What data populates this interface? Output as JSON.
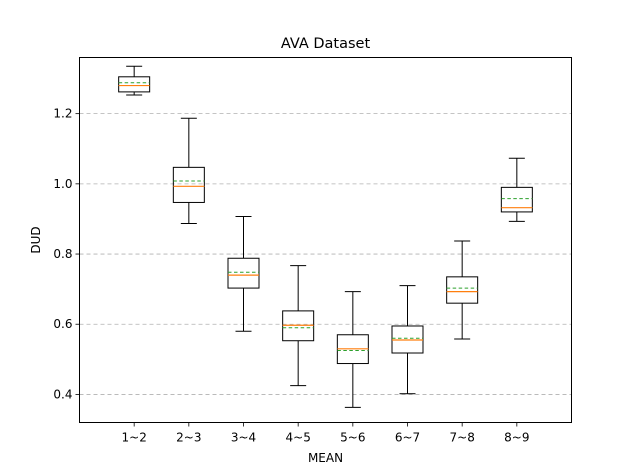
{
  "chart_data": {
    "type": "box",
    "title": "AVA Dataset",
    "xlabel": "MEAN",
    "ylabel": "DUD",
    "categories": [
      "1~2",
      "2~3",
      "3~4",
      "4~5",
      "5~6",
      "6~7",
      "7~8",
      "8~9"
    ],
    "ylim": [
      0.32,
      1.36
    ],
    "yticks": [
      0.4,
      0.6,
      0.8,
      1.0,
      1.2
    ],
    "ytick_labels": [
      "0.4",
      "0.6",
      "0.8",
      "1.0",
      "1.2"
    ],
    "grid": "horizontal dashed",
    "boxes": [
      {
        "category": "1~2",
        "whisker_low": 1.253,
        "q1": 1.262,
        "median": 1.28,
        "mean": 1.288,
        "q3": 1.305,
        "whisker_high": 1.335
      },
      {
        "category": "2~3",
        "whisker_low": 0.887,
        "q1": 0.947,
        "median": 0.993,
        "mean": 1.008,
        "q3": 1.047,
        "whisker_high": 1.187
      },
      {
        "category": "3~4",
        "whisker_low": 0.58,
        "q1": 0.703,
        "median": 0.74,
        "mean": 0.748,
        "q3": 0.788,
        "whisker_high": 0.907
      },
      {
        "category": "4~5",
        "whisker_low": 0.425,
        "q1": 0.553,
        "median": 0.597,
        "mean": 0.59,
        "q3": 0.638,
        "whisker_high": 0.767
      },
      {
        "category": "5~6",
        "whisker_low": 0.363,
        "q1": 0.488,
        "median": 0.53,
        "mean": 0.525,
        "q3": 0.57,
        "whisker_high": 0.693
      },
      {
        "category": "6~7",
        "whisker_low": 0.402,
        "q1": 0.518,
        "median": 0.555,
        "mean": 0.56,
        "q3": 0.595,
        "whisker_high": 0.71
      },
      {
        "category": "7~8",
        "whisker_low": 0.558,
        "q1": 0.66,
        "median": 0.693,
        "mean": 0.703,
        "q3": 0.735,
        "whisker_high": 0.837
      },
      {
        "category": "8~9",
        "whisker_low": 0.893,
        "q1": 0.92,
        "median": 0.932,
        "mean": 0.958,
        "q3": 0.99,
        "whisker_high": 1.073
      }
    ],
    "colors": {
      "median": "#ff7f0e",
      "mean": "#2ca02c",
      "box": "#000000",
      "grid": "#b0b0b0"
    }
  }
}
